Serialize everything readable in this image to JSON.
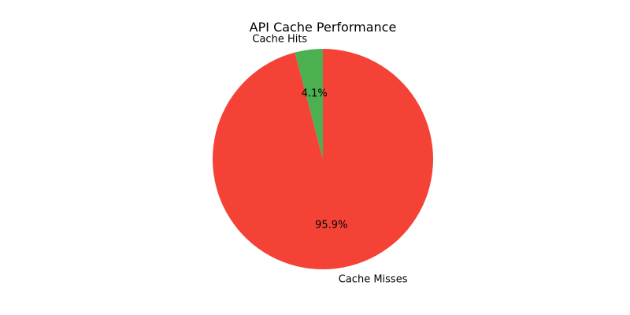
{
  "chart_data": {
    "type": "pie",
    "title": "API Cache Performance",
    "categories": [
      "Cache Hits",
      "Cache Misses"
    ],
    "values": [
      4.1,
      95.9
    ],
    "value_labels": [
      "4.1%",
      "95.9%"
    ],
    "colors": [
      "#4caf50",
      "#f44336"
    ],
    "start_angle_deg": 90,
    "direction": "counterclockwise",
    "legend": "none"
  }
}
